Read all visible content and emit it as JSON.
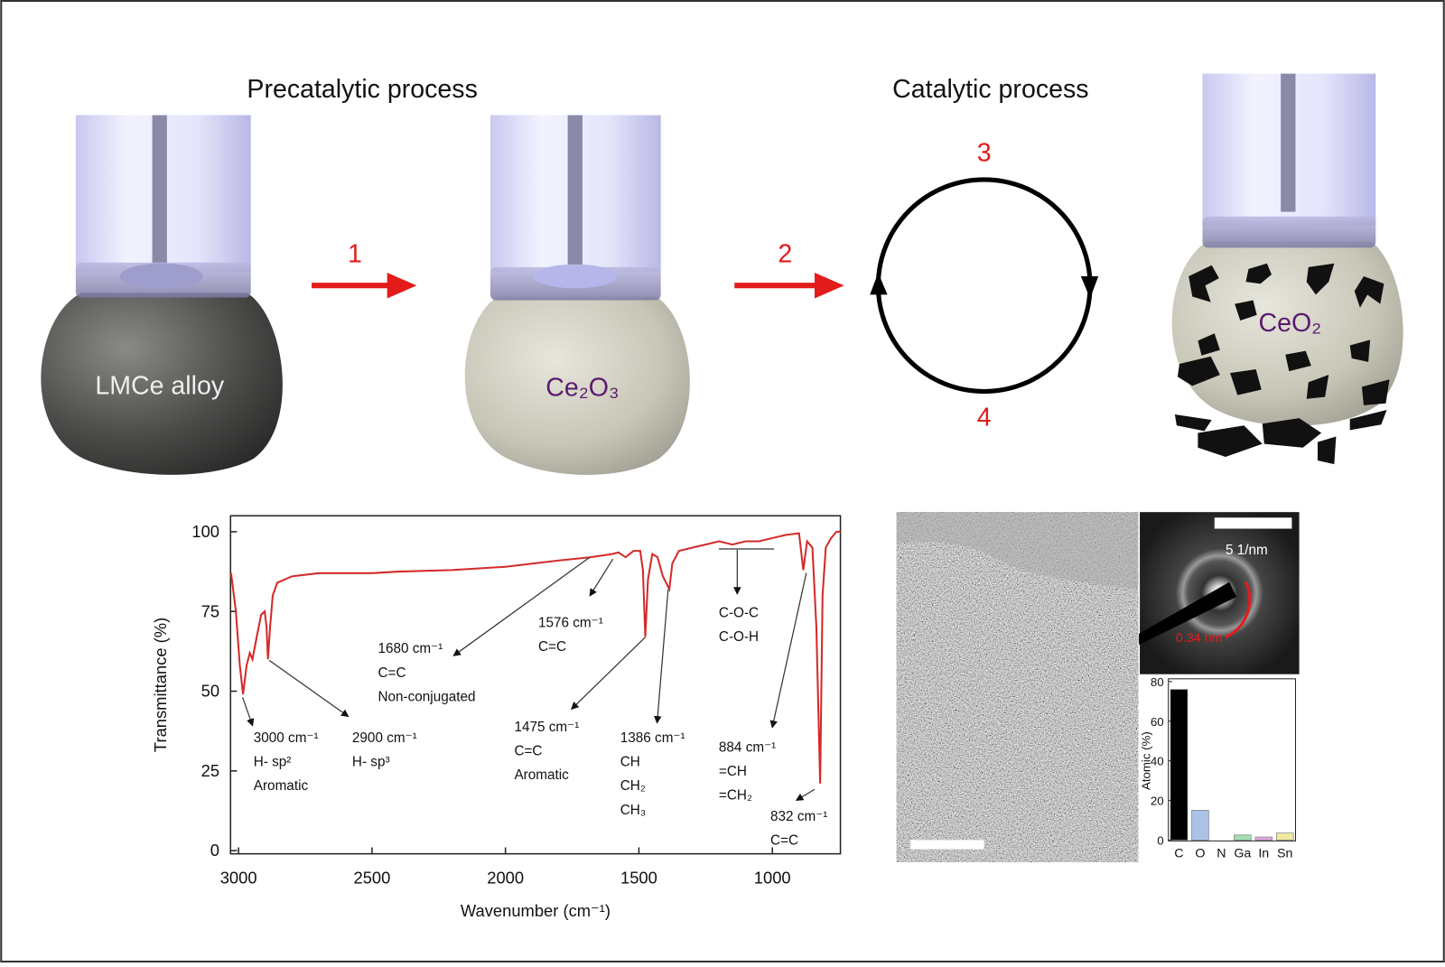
{
  "schematic": {
    "precatalytic_title": "Precatalytic process",
    "catalytic_title": "Catalytic process",
    "steps": [
      "1",
      "2",
      "3",
      "4"
    ],
    "labels": [
      "LMCe alloy",
      "Ce₂O₃",
      "CeO₂"
    ]
  },
  "micrograph": {
    "scale_label": "5 1/nm",
    "spacing_label": "0.34 nm"
  },
  "chart_data": [
    {
      "type": "line",
      "x_label": "Wavenumber (cm⁻¹)",
      "y_label": "Transmittance (%)",
      "color": "#d42a2a",
      "xlim": [
        3030,
        745
      ],
      "ylim": [
        -1,
        105
      ],
      "xticks": [
        3000,
        2500,
        2000,
        1500,
        1000
      ],
      "yticks": [
        0,
        25,
        50,
        75,
        100
      ],
      "x": [
        3028,
        3010,
        2995,
        2983,
        2970,
        2958,
        2948,
        2932,
        2915,
        2902,
        2895,
        2890,
        2882,
        2872,
        2855,
        2800,
        2700,
        2500,
        2400,
        2200,
        2000,
        1800,
        1680,
        1600,
        1576,
        1550,
        1520,
        1495,
        1485,
        1476,
        1466,
        1450,
        1430,
        1410,
        1386,
        1375,
        1350,
        1300,
        1250,
        1200,
        1150,
        1100,
        1050,
        1000,
        950,
        900,
        884,
        870,
        850,
        835,
        821,
        812,
        800,
        780,
        760,
        745
      ],
      "values": [
        87,
        75,
        58,
        49,
        58,
        62,
        60,
        67,
        74,
        75,
        70,
        60,
        70,
        80,
        84,
        86,
        87,
        87,
        87.5,
        88,
        89,
        91,
        92,
        93,
        93.5,
        92,
        94,
        94,
        88,
        67,
        85,
        93,
        92,
        86,
        82,
        90,
        94,
        95,
        96,
        97,
        96,
        97,
        97,
        98,
        99,
        99.5,
        88,
        97,
        95,
        70,
        21,
        80,
        95,
        98,
        100,
        100
      ],
      "annotations": [
        [
          "3000 cm⁻¹",
          "H- sp²",
          "Aromatic"
        ],
        [
          "2900 cm⁻¹",
          "H- sp³"
        ],
        [
          "1680 cm⁻¹",
          "C=C",
          "Non-conjugated"
        ],
        [
          "1576 cm⁻¹",
          "C=C"
        ],
        [
          "1475 cm⁻¹",
          "C=C",
          "Aromatic"
        ],
        [
          "1386 cm⁻¹",
          "CH",
          "CH₂",
          "CH₃"
        ],
        [
          "C-O-C",
          "C-O-H"
        ],
        [
          "884 cm⁻¹",
          "=CH",
          "=CH₂"
        ],
        [
          "832 cm⁻¹",
          "C=C"
        ]
      ]
    },
    {
      "type": "bar",
      "y_label": "Atomic (%)",
      "categories": [
        "C",
        "O",
        "N",
        "Ga",
        "In",
        "Sn"
      ],
      "values": [
        76,
        15,
        0,
        2.5,
        1.5,
        3.5
      ],
      "colors": [
        "#000000",
        "#a9c3e6",
        "#cccccc",
        "#a6dfb6",
        "#e2a9e0",
        "#eeeaa0"
      ],
      "ylim": [
        0,
        80
      ],
      "yticks": [
        0,
        20,
        40,
        60,
        80
      ]
    }
  ]
}
